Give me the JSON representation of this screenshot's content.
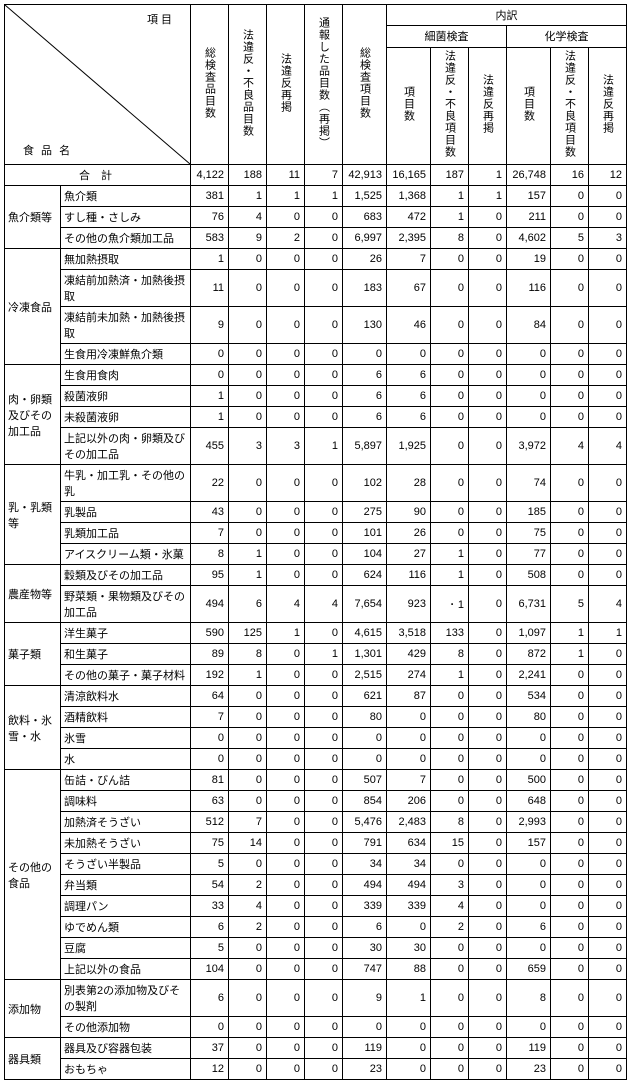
{
  "header": {
    "komoku": "項 目",
    "shokuhinmei": "食 品 名",
    "cols_top": [
      "総検査品目数",
      "法違反・不良品目数",
      "法違反再掲",
      "通報した品目数（再掲）",
      "総検査項目数"
    ],
    "uchiwake": "内訳",
    "saikin": "細菌検査",
    "kagaku": "化学検査",
    "subcols": [
      "項目数",
      "法違反・不良項目数",
      "法違反再掲"
    ],
    "goukei": "合 計"
  },
  "totals": [
    "4,122",
    "188",
    "11",
    "7",
    "42,913",
    "16,165",
    "187",
    "1",
    "26,748",
    "16",
    "12"
  ],
  "groups": [
    {
      "cat": "魚介類等",
      "rows": [
        {
          "name": "魚介類",
          "v": [
            "381",
            "1",
            "1",
            "1",
            "1,525",
            "1,368",
            "1",
            "1",
            "157",
            "0",
            "0"
          ]
        },
        {
          "name": "すし種・さしみ",
          "v": [
            "76",
            "4",
            "0",
            "0",
            "683",
            "472",
            "1",
            "0",
            "211",
            "0",
            "0"
          ]
        },
        {
          "name": "その他の魚介類加工品",
          "v": [
            "583",
            "9",
            "2",
            "0",
            "6,997",
            "2,395",
            "8",
            "0",
            "4,602",
            "5",
            "3"
          ]
        }
      ]
    },
    {
      "cat": "冷凍食品",
      "rows": [
        {
          "name": "無加熱摂取",
          "v": [
            "1",
            "0",
            "0",
            "0",
            "26",
            "7",
            "0",
            "0",
            "19",
            "0",
            "0"
          ]
        },
        {
          "name": "凍結前加熱済・加熱後摂取",
          "v": [
            "11",
            "0",
            "0",
            "0",
            "183",
            "67",
            "0",
            "0",
            "116",
            "0",
            "0"
          ]
        },
        {
          "name": "凍結前未加熱・加熱後摂取",
          "v": [
            "9",
            "0",
            "0",
            "0",
            "130",
            "46",
            "0",
            "0",
            "84",
            "0",
            "0"
          ]
        },
        {
          "name": "生食用冷凍鮮魚介類",
          "v": [
            "0",
            "0",
            "0",
            "0",
            "0",
            "0",
            "0",
            "0",
            "0",
            "0",
            "0"
          ]
        }
      ]
    },
    {
      "cat": "肉・卵類及びその加工品",
      "rows": [
        {
          "name": "生食用食肉",
          "v": [
            "0",
            "0",
            "0",
            "0",
            "6",
            "6",
            "0",
            "0",
            "0",
            "0",
            "0"
          ]
        },
        {
          "name": "殺菌液卵",
          "v": [
            "1",
            "0",
            "0",
            "0",
            "6",
            "6",
            "0",
            "0",
            "0",
            "0",
            "0"
          ]
        },
        {
          "name": "未殺菌液卵",
          "v": [
            "1",
            "0",
            "0",
            "0",
            "6",
            "6",
            "0",
            "0",
            "0",
            "0",
            "0"
          ]
        },
        {
          "name": "上記以外の肉・卵類及びその加工品",
          "v": [
            "455",
            "3",
            "3",
            "1",
            "5,897",
            "1,925",
            "0",
            "0",
            "3,972",
            "4",
            "4"
          ]
        }
      ]
    },
    {
      "cat": "乳・乳類等",
      "rows": [
        {
          "name": "牛乳・加工乳・その他の乳",
          "v": [
            "22",
            "0",
            "0",
            "0",
            "102",
            "28",
            "0",
            "0",
            "74",
            "0",
            "0"
          ]
        },
        {
          "name": "乳製品",
          "v": [
            "43",
            "0",
            "0",
            "0",
            "275",
            "90",
            "0",
            "0",
            "185",
            "0",
            "0"
          ]
        },
        {
          "name": "乳類加工品",
          "v": [
            "7",
            "0",
            "0",
            "0",
            "101",
            "26",
            "0",
            "0",
            "75",
            "0",
            "0"
          ]
        },
        {
          "name": "アイスクリーム類・氷菓",
          "v": [
            "8",
            "1",
            "0",
            "0",
            "104",
            "27",
            "1",
            "0",
            "77",
            "0",
            "0"
          ]
        }
      ]
    },
    {
      "cat": "農産物等",
      "rows": [
        {
          "name": "穀類及びその加工品",
          "v": [
            "95",
            "1",
            "0",
            "0",
            "624",
            "116",
            "1",
            "0",
            "508",
            "0",
            "0"
          ]
        },
        {
          "name": "野菜類・果物類及びその加工品",
          "v": [
            "494",
            "6",
            "4",
            "4",
            "7,654",
            "923",
            "･ 1",
            "0",
            "6,731",
            "5",
            "4"
          ]
        }
      ]
    },
    {
      "cat": "菓子類",
      "rows": [
        {
          "name": "洋生菓子",
          "v": [
            "590",
            "125",
            "1",
            "0",
            "4,615",
            "3,518",
            "133",
            "0",
            "1,097",
            "1",
            "1"
          ]
        },
        {
          "name": "和生菓子",
          "v": [
            "89",
            "8",
            "0",
            "1",
            "1,301",
            "429",
            "8",
            "0",
            "872",
            "1",
            "0"
          ]
        },
        {
          "name": "その他の菓子・菓子材料",
          "v": [
            "192",
            "1",
            "0",
            "0",
            "2,515",
            "274",
            "1",
            "0",
            "2,241",
            "0",
            "0"
          ]
        }
      ]
    },
    {
      "cat": "飲料・氷雪・水",
      "rows": [
        {
          "name": "清涼飲料水",
          "v": [
            "64",
            "0",
            "0",
            "0",
            "621",
            "87",
            "0",
            "0",
            "534",
            "0",
            "0"
          ]
        },
        {
          "name": "酒精飲料",
          "v": [
            "7",
            "0",
            "0",
            "0",
            "80",
            "0",
            "0",
            "0",
            "80",
            "0",
            "0"
          ]
        },
        {
          "name": "氷雪",
          "v": [
            "0",
            "0",
            "0",
            "0",
            "0",
            "0",
            "0",
            "0",
            "0",
            "0",
            "0"
          ]
        },
        {
          "name": "水",
          "v": [
            "0",
            "0",
            "0",
            "0",
            "0",
            "0",
            "0",
            "0",
            "0",
            "0",
            "0"
          ]
        }
      ]
    },
    {
      "cat": "その他の食品",
      "rows": [
        {
          "name": "缶詰・びん詰",
          "v": [
            "81",
            "0",
            "0",
            "0",
            "507",
            "7",
            "0",
            "0",
            "500",
            "0",
            "0"
          ]
        },
        {
          "name": "調味料",
          "v": [
            "63",
            "0",
            "0",
            "0",
            "854",
            "206",
            "0",
            "0",
            "648",
            "0",
            "0"
          ]
        },
        {
          "name": "加熱済そうざい",
          "v": [
            "512",
            "7",
            "0",
            "0",
            "5,476",
            "2,483",
            "8",
            "0",
            "2,993",
            "0",
            "0"
          ]
        },
        {
          "name": "未加熱そうざい",
          "v": [
            "75",
            "14",
            "0",
            "0",
            "791",
            "634",
            "15",
            "0",
            "157",
            "0",
            "0"
          ]
        },
        {
          "name": "そうざい半製品",
          "v": [
            "5",
            "0",
            "0",
            "0",
            "34",
            "34",
            "0",
            "0",
            "0",
            "0",
            "0"
          ]
        },
        {
          "name": "弁当類",
          "v": [
            "54",
            "2",
            "0",
            "0",
            "494",
            "494",
            "3",
            "0",
            "0",
            "0",
            "0"
          ]
        },
        {
          "name": "調理パン",
          "v": [
            "33",
            "4",
            "0",
            "0",
            "339",
            "339",
            "4",
            "0",
            "0",
            "0",
            "0"
          ]
        },
        {
          "name": "ゆでめん類",
          "v": [
            "6",
            "2",
            "0",
            "0",
            "6",
            "0",
            "2",
            "0",
            "6",
            "0",
            "0"
          ]
        },
        {
          "name": "豆腐",
          "v": [
            "5",
            "0",
            "0",
            "0",
            "30",
            "30",
            "0",
            "0",
            "0",
            "0",
            "0"
          ]
        },
        {
          "name": "上記以外の食品",
          "v": [
            "104",
            "0",
            "0",
            "0",
            "747",
            "88",
            "0",
            "0",
            "659",
            "0",
            "0"
          ]
        }
      ]
    },
    {
      "cat": "添加物",
      "rows": [
        {
          "name": "別表第2の添加物及びその製剤",
          "v": [
            "6",
            "0",
            "0",
            "0",
            "9",
            "1",
            "0",
            "0",
            "8",
            "0",
            "0"
          ]
        },
        {
          "name": "その他添加物",
          "v": [
            "0",
            "0",
            "0",
            "0",
            "0",
            "0",
            "0",
            "0",
            "0",
            "0",
            "0"
          ]
        }
      ]
    },
    {
      "cat": "器具類",
      "rows": [
        {
          "name": "器具及び容器包装",
          "v": [
            "37",
            "0",
            "0",
            "0",
            "119",
            "0",
            "0",
            "0",
            "119",
            "0",
            "0"
          ]
        },
        {
          "name": "おもちゃ",
          "v": [
            "12",
            "0",
            "0",
            "0",
            "23",
            "0",
            "0",
            "0",
            "23",
            "0",
            "0"
          ]
        }
      ]
    }
  ],
  "colwidths": {
    "cat": 56,
    "item": 130,
    "num": 38,
    "num_wide": 44
  },
  "colors": {
    "border": "#000000",
    "bg": "#ffffff"
  }
}
